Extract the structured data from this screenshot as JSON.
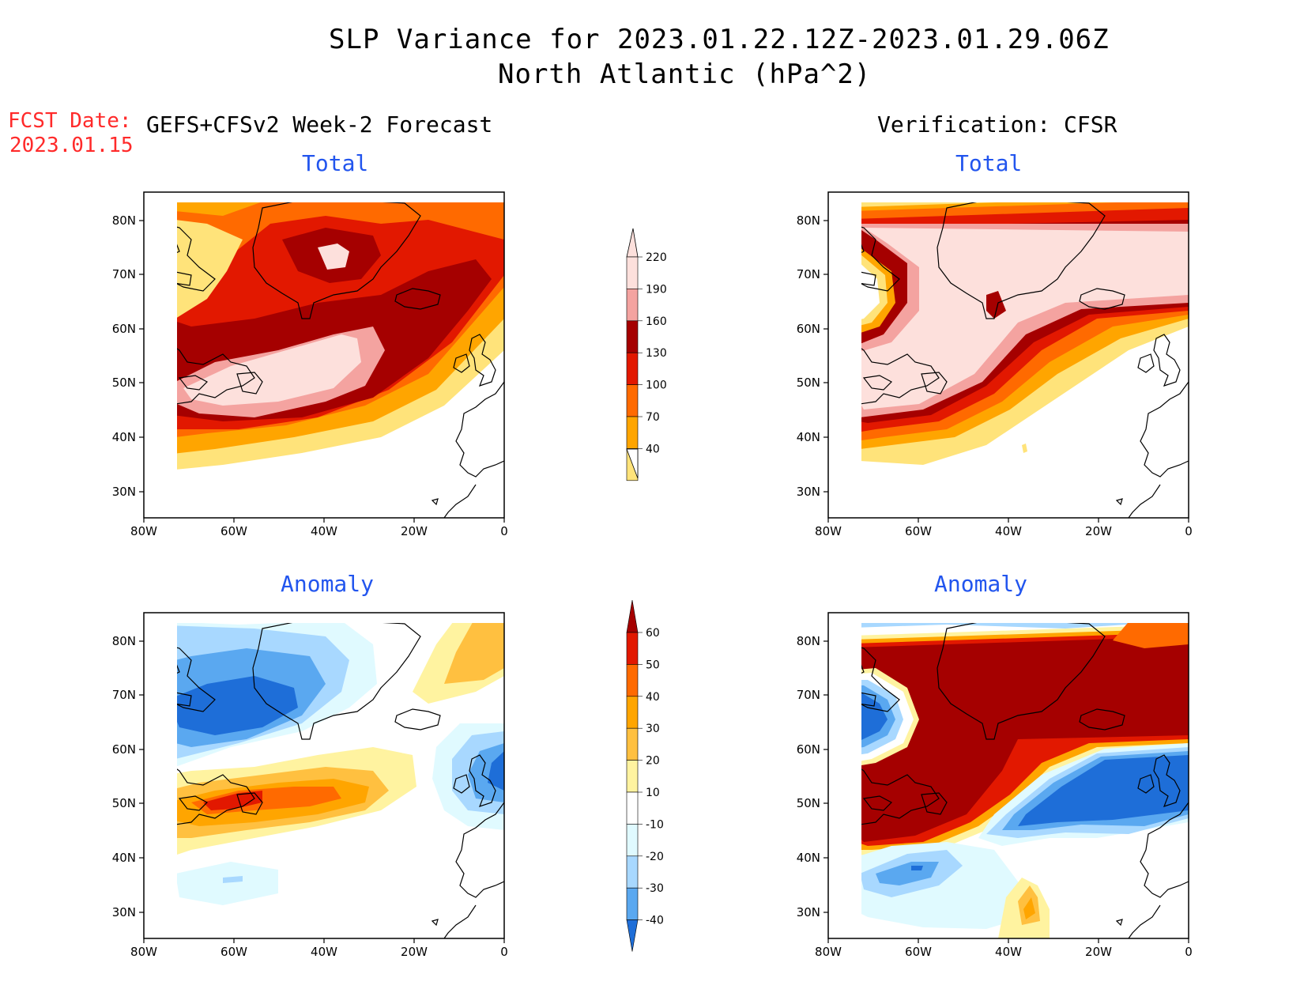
{
  "title": {
    "line1": "SLP Variance for 2023.01.22.12Z-2023.01.29.06Z",
    "line2": "North Atlantic (hPa^2)"
  },
  "fcst_date": {
    "label": "FCST Date:",
    "value": "2023.01.15"
  },
  "columns": {
    "forecast_header": "GEFS+CFSv2 Week-2 Forecast",
    "verification_header": "Verification: CFSR"
  },
  "panel_titles": {
    "total": "Total",
    "anomaly": "Anomaly"
  },
  "axes": {
    "lon_labels": [
      "80W",
      "60W",
      "40W",
      "20W",
      "0"
    ],
    "lat_labels": [
      "80N",
      "70N",
      "60N",
      "50N",
      "40N",
      "30N"
    ],
    "lon_range": [
      -80,
      0
    ],
    "lat_range": [
      25,
      85
    ]
  },
  "colorbars": {
    "total": {
      "ticks": [
        "220",
        "190",
        "160",
        "130",
        "100",
        "70",
        "40"
      ],
      "colors": [
        "#fde0dc",
        "#f4a3a0",
        "#a50000",
        "#e21800",
        "#ff6a00",
        "#ffa500",
        "#ffe37a"
      ]
    },
    "anomaly": {
      "ticks": [
        "60",
        "50",
        "40",
        "30",
        "20",
        "10",
        "-10",
        "-20",
        "-30",
        "-40"
      ],
      "colors": [
        "#a50000",
        "#e21800",
        "#ff6a00",
        "#ffa500",
        "#ffc040",
        "#fff3a0",
        "#ffffff",
        "#e0faff",
        "#a8d8ff",
        "#5aa8f0",
        "#1e6ed8"
      ]
    }
  },
  "map_fields": {
    "forecast_total": "SLP variance total, forecast",
    "verification_total": "SLP variance total, verification",
    "forecast_anomaly": "SLP variance anomaly, forecast",
    "verification_anomaly": "SLP variance anomaly, verification"
  }
}
